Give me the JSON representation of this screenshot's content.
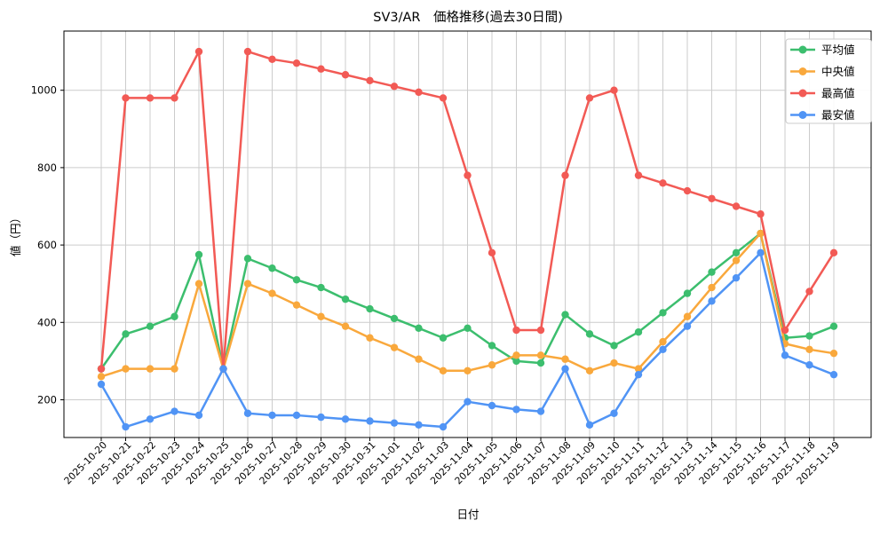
{
  "title": "SV3/AR　価格推移(過去30日間)",
  "axes": {
    "x_label": "日付",
    "y_label": "値（円）",
    "y_ticks": [
      200,
      400,
      600,
      800,
      1000
    ]
  },
  "legend": {
    "position": "upper right",
    "items": [
      "平均値",
      "中央値",
      "最高値",
      "最安値"
    ]
  },
  "colors": {
    "average": "#3cbe6e",
    "median": "#f9a83c",
    "max": "#f25a55",
    "min": "#5094f5",
    "grid": "#cccccc",
    "spine": "#000000",
    "legend_border": "#cccccc"
  },
  "chart_data": {
    "type": "line",
    "title": "SV3/AR　価格推移(過去30日間)",
    "xlabel": "日付",
    "ylabel": "値（円）",
    "ylim": [
      100,
      1155
    ],
    "y_ticks": [
      200,
      400,
      600,
      800,
      1000
    ],
    "grid": true,
    "legend_position": "upper right",
    "x": [
      "2025-10-20",
      "2025-10-21",
      "2025-10-22",
      "2025-10-23",
      "2025-10-24",
      "2025-10-25",
      "2025-10-26",
      "2025-10-27",
      "2025-10-28",
      "2025-10-29",
      "2025-10-30",
      "2025-10-31",
      "2025-11-01",
      "2025-11-02",
      "2025-11-03",
      "2025-11-04",
      "2025-11-05",
      "2025-11-06",
      "2025-11-07",
      "2025-11-08",
      "2025-11-09",
      "2025-11-10",
      "2025-11-11",
      "2025-11-12",
      "2025-11-13",
      "2025-11-14",
      "2025-11-15",
      "2025-11-16",
      "2025-11-17",
      "2025-11-18",
      "2025-11-19"
    ],
    "series": [
      {
        "key": "average",
        "name": "平均値",
        "color": "#3cbe6e",
        "values": [
          280,
          370,
          390,
          415,
          575,
          280,
          565,
          540,
          510,
          490,
          460,
          435,
          410,
          385,
          360,
          385,
          340,
          300,
          295,
          420,
          370,
          340,
          375,
          425,
          475,
          530,
          580,
          630,
          360,
          365,
          390
        ]
      },
      {
        "key": "median",
        "name": "中央値",
        "color": "#f9a83c",
        "values": [
          260,
          280,
          280,
          280,
          500,
          280,
          500,
          475,
          445,
          415,
          390,
          360,
          335,
          305,
          275,
          275,
          290,
          315,
          315,
          305,
          275,
          295,
          280,
          350,
          415,
          490,
          560,
          630,
          345,
          330,
          320
        ]
      },
      {
        "key": "max",
        "name": "最高値",
        "color": "#f25a55",
        "values": [
          280,
          980,
          980,
          980,
          1100,
          280,
          1100,
          1080,
          1070,
          1055,
          1040,
          1025,
          1010,
          995,
          980,
          780,
          580,
          380,
          380,
          780,
          980,
          1000,
          780,
          760,
          740,
          720,
          700,
          680,
          380,
          480,
          580
        ]
      },
      {
        "key": "min",
        "name": "最安値",
        "color": "#5094f5",
        "values": [
          240,
          130,
          150,
          170,
          160,
          280,
          165,
          160,
          160,
          155,
          150,
          145,
          140,
          135,
          130,
          195,
          185,
          175,
          170,
          280,
          135,
          165,
          265,
          330,
          390,
          455,
          515,
          580,
          315,
          290,
          265
        ]
      }
    ]
  }
}
